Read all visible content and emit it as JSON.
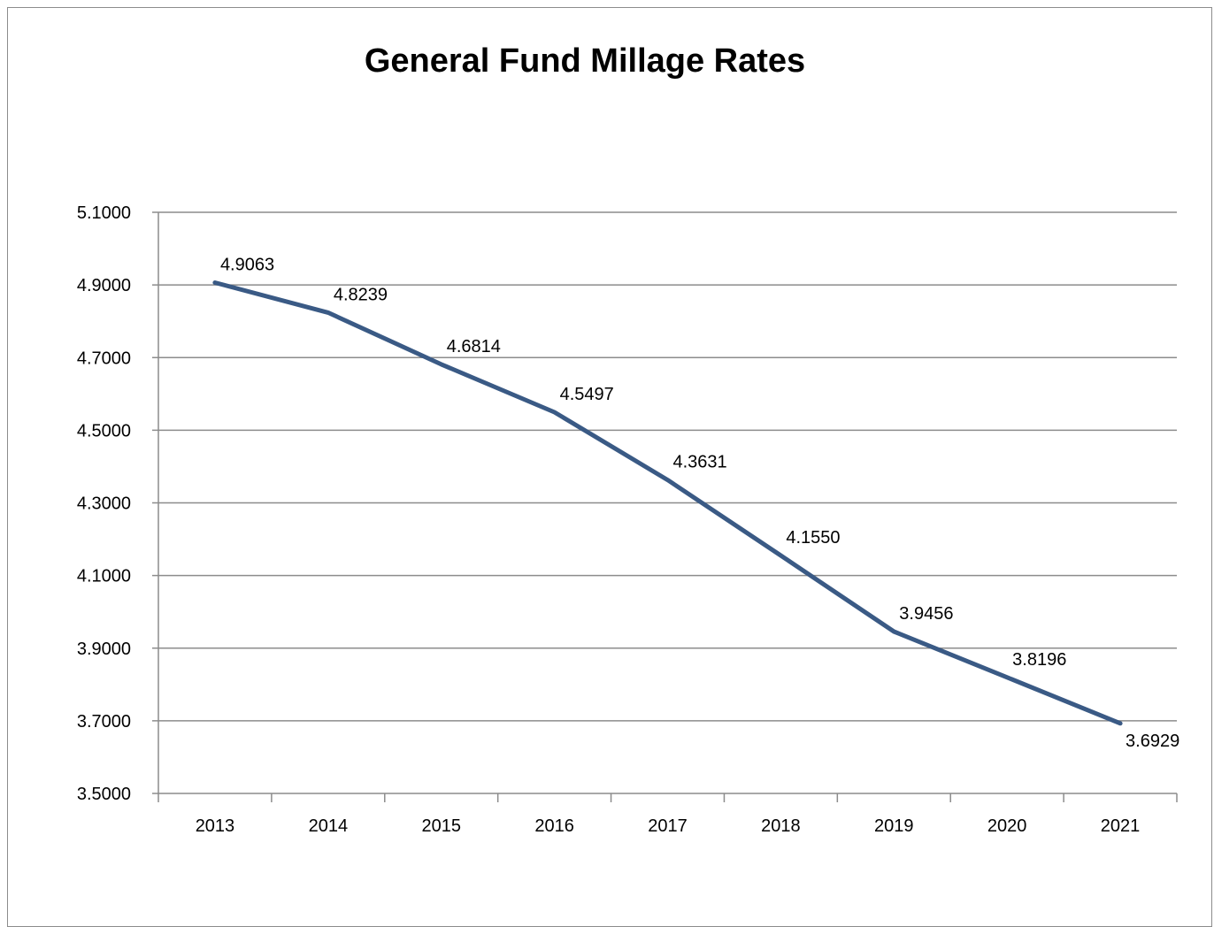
{
  "chart_data": {
    "type": "line",
    "title": "General Fund Millage Rates",
    "categories": [
      "2013",
      "2014",
      "2015",
      "2016",
      "2017",
      "2018",
      "2019",
      "2020",
      "2021"
    ],
    "series": [
      {
        "values": [
          4.9063,
          4.8239,
          4.6814,
          4.5497,
          4.3631,
          4.155,
          3.9456,
          3.8196,
          3.6929
        ],
        "data_labels": [
          "4.9063",
          "4.8239",
          "4.6814",
          "4.5497",
          "4.3631",
          "4.1550",
          "3.9456",
          "3.8196",
          "3.6929"
        ]
      }
    ],
    "ylim": [
      3.5,
      5.1
    ],
    "y_ticks": [
      "3.5000",
      "3.7000",
      "3.9000",
      "4.1000",
      "4.3000",
      "4.5000",
      "4.7000",
      "4.9000",
      "5.1000"
    ],
    "xlabel": "",
    "ylabel": "",
    "grid": true,
    "legend": "none",
    "colors": {
      "line": "#3a5a85",
      "grid": "#8c8c8c",
      "axis": "#8c8c8c",
      "frame": "#8c8c8c"
    }
  }
}
